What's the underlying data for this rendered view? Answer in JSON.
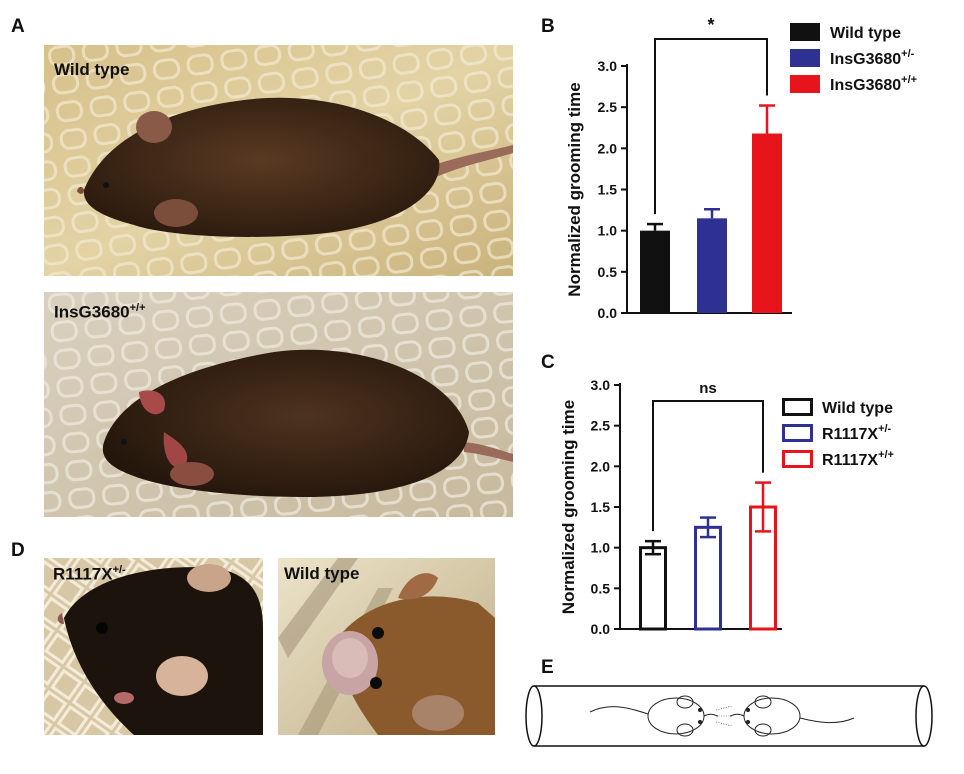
{
  "panels": {
    "a": {
      "letter": "A",
      "top_label": "Wild type",
      "bottom_label_base": "InsG3680",
      "bottom_label_sup": "+/+"
    },
    "b": {
      "letter": "B"
    },
    "c": {
      "letter": "C"
    },
    "d": {
      "letter": "D",
      "left_label_base": "R1117X",
      "left_label_sup": "+/-",
      "right_label": "Wild type"
    },
    "e": {
      "letter": "E"
    }
  },
  "chart_data": [
    {
      "id": "B",
      "type": "bar",
      "ylabel": "Normalized grooming time",
      "ylim": [
        0,
        3.0
      ],
      "yticks": [
        "0.0",
        "0.5",
        "1.0",
        "1.5",
        "2.0",
        "2.5",
        "3.0"
      ],
      "fill": "solid",
      "series": [
        {
          "name": "Wild type",
          "name_sup": "",
          "value": 1.0,
          "error": 0.08,
          "color": "#111111"
        },
        {
          "name": "InsG3680",
          "name_sup": "+/-",
          "value": 1.15,
          "error": 0.11,
          "color": "#2e3192"
        },
        {
          "name": "InsG3680",
          "name_sup": "+/+",
          "value": 2.18,
          "error": 0.34,
          "color": "#e8141b"
        }
      ],
      "significance": {
        "label": "*",
        "from": 0,
        "to": 2
      }
    },
    {
      "id": "C",
      "type": "bar",
      "ylabel": "Normalized grooming time",
      "ylim": [
        0,
        3.0
      ],
      "yticks": [
        "0.0",
        "0.5",
        "1.0",
        "1.5",
        "2.0",
        "2.5",
        "3.0"
      ],
      "fill": "hollow",
      "series": [
        {
          "name": "Wild type",
          "name_sup": "",
          "value": 1.0,
          "error": 0.08,
          "color": "#111111"
        },
        {
          "name": "R1117X",
          "name_sup": "+/-",
          "value": 1.25,
          "error": 0.12,
          "color": "#2e3192"
        },
        {
          "name": "R1117X",
          "name_sup": "+/+",
          "value": 1.5,
          "error": 0.3,
          "color": "#e8141b"
        }
      ],
      "significance": {
        "label": "ns",
        "from": 0,
        "to": 2
      }
    }
  ]
}
